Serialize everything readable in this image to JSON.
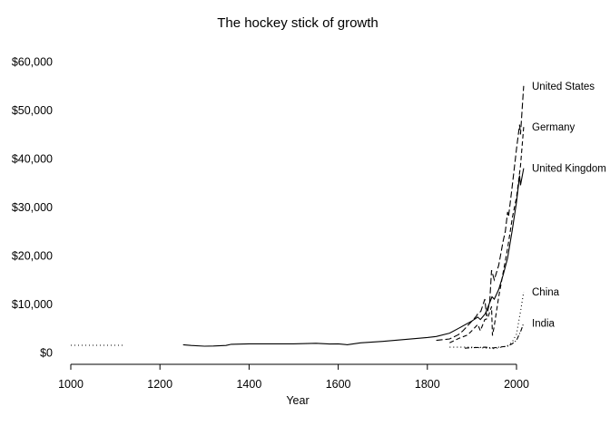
{
  "chart_data": {
    "type": "line",
    "title": "The hockey stick of growth",
    "xlabel": "Year",
    "ylabel": "",
    "xlim": [
      1000,
      2016
    ],
    "ylim": [
      0,
      60000
    ],
    "x_ticks": [
      1000,
      1200,
      1400,
      1600,
      1800,
      2000
    ],
    "y_ticks": [
      0,
      10000,
      20000,
      30000,
      40000,
      50000,
      60000
    ],
    "y_tick_labels": [
      "$0",
      "$10,000",
      "$20,000",
      "$30,000",
      "$40,000",
      "$50,000",
      "$60,000"
    ],
    "grid": false,
    "legend": "direct labels at line ends",
    "series": [
      {
        "name": "United States",
        "style": "longdash",
        "points": [
          [
            1820,
            2500
          ],
          [
            1850,
            2800
          ],
          [
            1870,
            3700
          ],
          [
            1880,
            4500
          ],
          [
            1890,
            5500
          ],
          [
            1900,
            6500
          ],
          [
            1910,
            7500
          ],
          [
            1913,
            8000
          ],
          [
            1920,
            8500
          ],
          [
            1929,
            11000
          ],
          [
            1933,
            7500
          ],
          [
            1940,
            10500
          ],
          [
            1944,
            17000
          ],
          [
            1950,
            15000
          ],
          [
            1960,
            18000
          ],
          [
            1970,
            23000
          ],
          [
            1975,
            25000
          ],
          [
            1980,
            29000
          ],
          [
            1982,
            28000
          ],
          [
            1990,
            34000
          ],
          [
            2000,
            42000
          ],
          [
            2007,
            47000
          ],
          [
            2009,
            45000
          ],
          [
            2016,
            55000
          ]
        ]
      },
      {
        "name": "Germany",
        "style": "dashed",
        "points": [
          [
            1850,
            2000
          ],
          [
            1870,
            2900
          ],
          [
            1890,
            3600
          ],
          [
            1900,
            4500
          ],
          [
            1913,
            5800
          ],
          [
            1919,
            4500
          ],
          [
            1929,
            6800
          ],
          [
            1935,
            7000
          ],
          [
            1944,
            9500
          ],
          [
            1946,
            3500
          ],
          [
            1950,
            5500
          ],
          [
            1960,
            11500
          ],
          [
            1970,
            16500
          ],
          [
            1980,
            21500
          ],
          [
            1991,
            28000
          ],
          [
            2000,
            32000
          ],
          [
            2009,
            38500
          ],
          [
            2016,
            46500
          ]
        ]
      },
      {
        "name": "United Kingdom",
        "style": "solid",
        "points": [
          [
            1252,
            1600
          ],
          [
            1270,
            1450
          ],
          [
            1300,
            1300
          ],
          [
            1320,
            1350
          ],
          [
            1348,
            1450
          ],
          [
            1360,
            1700
          ],
          [
            1400,
            1800
          ],
          [
            1450,
            1800
          ],
          [
            1500,
            1800
          ],
          [
            1550,
            1900
          ],
          [
            1580,
            1750
          ],
          [
            1600,
            1800
          ],
          [
            1620,
            1600
          ],
          [
            1650,
            2000
          ],
          [
            1700,
            2300
          ],
          [
            1750,
            2700
          ],
          [
            1800,
            3100
          ],
          [
            1820,
            3300
          ],
          [
            1850,
            4000
          ],
          [
            1870,
            5000
          ],
          [
            1900,
            6500
          ],
          [
            1913,
            7300
          ],
          [
            1919,
            6800
          ],
          [
            1930,
            8000
          ],
          [
            1945,
            11500
          ],
          [
            1950,
            11000
          ],
          [
            1960,
            13000
          ],
          [
            1970,
            16000
          ],
          [
            1980,
            19500
          ],
          [
            1990,
            25000
          ],
          [
            2000,
            31000
          ],
          [
            2007,
            36500
          ],
          [
            2009,
            34500
          ],
          [
            2016,
            38000
          ]
        ]
      },
      {
        "name": "China",
        "style": "dotted",
        "points": [
          [
            1000,
            1500
          ],
          [
            1120,
            1500
          ],
          [
            1850,
            1100
          ],
          [
            1900,
            1100
          ],
          [
            1950,
            800
          ],
          [
            1978,
            1300
          ],
          [
            1990,
            2100
          ],
          [
            2000,
            3800
          ],
          [
            2010,
            9000
          ],
          [
            2016,
            12500
          ]
        ]
      },
      {
        "name": "India",
        "style": "dotdash",
        "points": [
          [
            1884,
            900
          ],
          [
            1900,
            1000
          ],
          [
            1913,
            1050
          ],
          [
            1930,
            1100
          ],
          [
            1947,
            950
          ],
          [
            1960,
            1100
          ],
          [
            1980,
            1300
          ],
          [
            1990,
            1800
          ],
          [
            2000,
            2500
          ],
          [
            2010,
            4500
          ],
          [
            2016,
            6100
          ]
        ]
      }
    ]
  }
}
